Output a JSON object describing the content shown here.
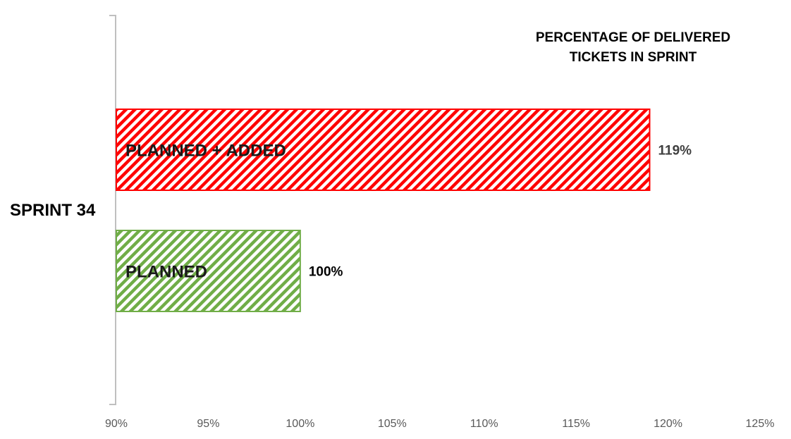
{
  "chart_data": {
    "type": "bar",
    "orientation": "horizontal",
    "title_lines": [
      "PERCENTAGE OF DELIVERED",
      "TICKETS IN SPRINT"
    ],
    "category": "SPRINT 34",
    "bars": [
      {
        "label": "PLANNED + ADDED",
        "value": 119,
        "value_label": "119%",
        "color": "#ff0000",
        "label_color": "#404040"
      },
      {
        "label": "PLANNED",
        "value": 100,
        "value_label": "100%",
        "color": "#70ad47",
        "label_color": "#000000"
      }
    ],
    "xlim": [
      90,
      125
    ],
    "ticks": [
      90,
      95,
      100,
      105,
      110,
      115,
      120,
      125
    ],
    "tick_labels": [
      "90%",
      "95%",
      "100%",
      "105%",
      "110%",
      "115%",
      "120%",
      "125%"
    ],
    "grid": false,
    "legend": "none"
  }
}
